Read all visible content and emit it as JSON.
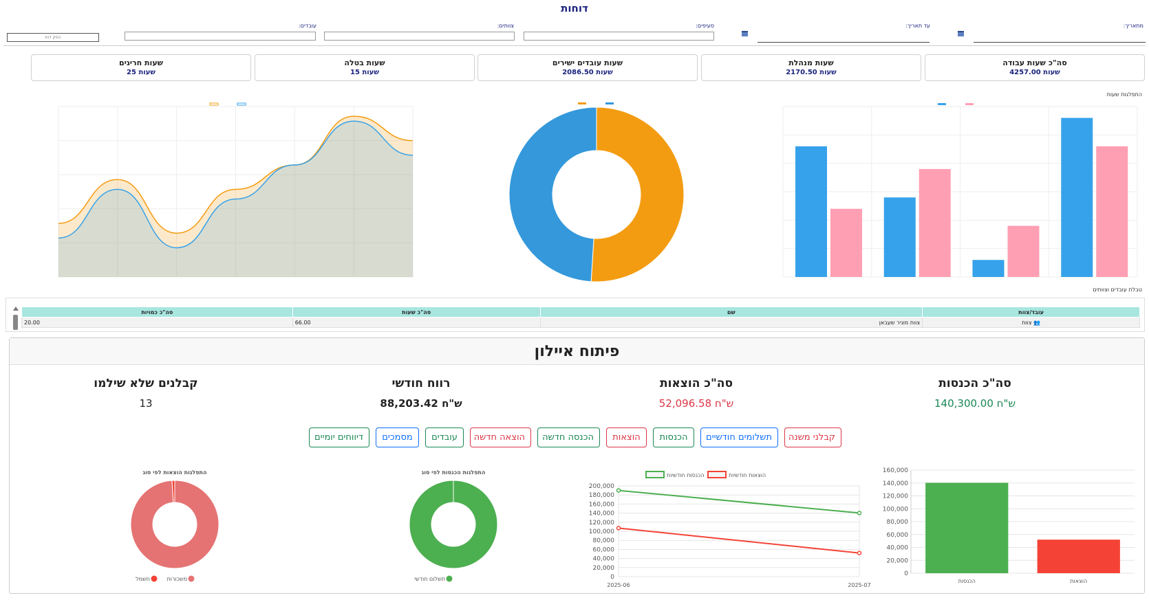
{
  "page": {
    "title": "דוחות"
  },
  "filters": {
    "from_label": "מתאריך:",
    "to_label": "עד תאריך:",
    "sections_label": "סעיפים:",
    "teams_label": "צוותים:",
    "workers_label": "עובדים:",
    "small_button": "הפק דוח"
  },
  "stat_cards": [
    {
      "title": "סה\"כ שעות עבודה",
      "value": "4257.00 שעות"
    },
    {
      "title": "שעות מנהלת",
      "value": "2170.50 שעות"
    },
    {
      "title": "שעות עובדים ישירים",
      "value": "2086.50 שעות"
    },
    {
      "title": "שעות בטלה",
      "value": "15 שעות"
    },
    {
      "title": "שעות חריגים",
      "value": "25 שעות"
    }
  ],
  "captions": {
    "hours_distribution": "התפלגות שעות",
    "table_caption": "טבלת עובדים וצוותים"
  },
  "table": {
    "headers": [
      "עובד/צוות",
      "שם",
      "סה\"כ שעות",
      "סה\"כ כמויות"
    ],
    "rows": [
      {
        "type": "צוות",
        "name": "צוות מוניר שעבאן",
        "hours": "66.00",
        "quantity": "20.00"
      }
    ]
  },
  "panel": {
    "title": "פיתוח איילון",
    "kpis": [
      {
        "title": "סה\"כ הכנסות",
        "value": "140,300.00 ש\"ח",
        "color": "#198754"
      },
      {
        "title": "סה\"כ הוצאות",
        "value": "52,096.58 ש\"ח",
        "color": "#dc3545"
      },
      {
        "title": "רווח חודשי",
        "value": "88,203.42 ש\"ח",
        "color": "#222222"
      },
      {
        "title": "קבלנים שלא שילמו",
        "value": "13",
        "color": "#222222"
      }
    ],
    "buttons": [
      {
        "label": "קבלני משנה",
        "style": "red"
      },
      {
        "label": "תשלומים חודשיים",
        "style": "blue"
      },
      {
        "label": "הכנסות",
        "style": "green"
      },
      {
        "label": "הוצאות",
        "style": "red"
      },
      {
        "label": "הכנסה חדשה",
        "style": "green"
      },
      {
        "label": "הוצאה חדשה",
        "style": "red"
      },
      {
        "label": "עובדים",
        "style": "green"
      },
      {
        "label": "מסמכים",
        "style": "blue"
      },
      {
        "label": "דיווחים יומיים",
        "style": "green"
      }
    ]
  },
  "colors": {
    "blue": "#36a2eb",
    "pink": "#ff9fb3",
    "orange": "#f39c12",
    "donut_blue": "#3498db",
    "green": "#4caf50",
    "red": "#f44336",
    "salmon": "#e57373",
    "title_navy": "#1a237e"
  },
  "chart_data": [
    {
      "id": "bar-income-expense",
      "type": "bar",
      "categories": [
        "הכנסות",
        "הוצאות"
      ],
      "values": [
        140300,
        52096.58
      ],
      "colors": [
        "#4caf50",
        "#f44336"
      ],
      "ylim": [
        0,
        160000
      ],
      "yticks": [
        "0",
        "20,000",
        "40,000",
        "60,000",
        "80,000",
        "100,000",
        "120,000",
        "140,000",
        "160,000"
      ]
    },
    {
      "id": "line-monthly",
      "type": "line",
      "x": [
        "2025-06",
        "2025-07"
      ],
      "series": [
        {
          "name": "הכנסות חודשיות",
          "values": [
            190000,
            140300
          ],
          "color": "#4caf50"
        },
        {
          "name": "הוצאות חודשיות",
          "values": [
            107000,
            52096.58
          ],
          "color": "#f44336"
        }
      ],
      "ylim": [
        0,
        200000
      ],
      "yticks": [
        "0",
        "20,000",
        "40,000",
        "60,000",
        "80,000",
        "100,000",
        "120,000",
        "140,000",
        "160,000",
        "180,000",
        "200,000"
      ],
      "legend": "top"
    },
    {
      "id": "donut-income",
      "type": "pie",
      "title": "התפלגות הכנסות לפי סוג",
      "labels": [
        "תשלום חודשי"
      ],
      "values": [
        100
      ],
      "colors": [
        "#4caf50"
      ]
    },
    {
      "id": "donut-expense",
      "type": "pie",
      "title": "התפלגות הוצאות לפי סוג",
      "labels": [
        "משכורות",
        "חשמל"
      ],
      "values": [
        99,
        1
      ],
      "colors": [
        "#e57373",
        "#f44336"
      ]
    },
    {
      "id": "bar-hours",
      "type": "bar",
      "series": [
        {
          "values": [
            46,
            28,
            6,
            56
          ],
          "color": "#36a2eb"
        },
        {
          "values": [
            24,
            38,
            18,
            46
          ],
          "color": "#ff9fb3"
        }
      ],
      "ylim": [
        0,
        60
      ]
    },
    {
      "id": "donut-hours",
      "type": "pie",
      "values": [
        2170.5,
        2086.5
      ],
      "colors": [
        "#f39c12",
        "#3498db"
      ]
    },
    {
      "id": "area-hours",
      "type": "area",
      "series": [
        {
          "values": [
            110,
            200,
            90,
            180,
            230,
            330,
            280
          ],
          "color": "#f39c12"
        },
        {
          "values": [
            80,
            180,
            60,
            160,
            230,
            320,
            250
          ],
          "color": "#36a2eb"
        }
      ],
      "ylim": [
        0,
        350
      ]
    }
  ]
}
